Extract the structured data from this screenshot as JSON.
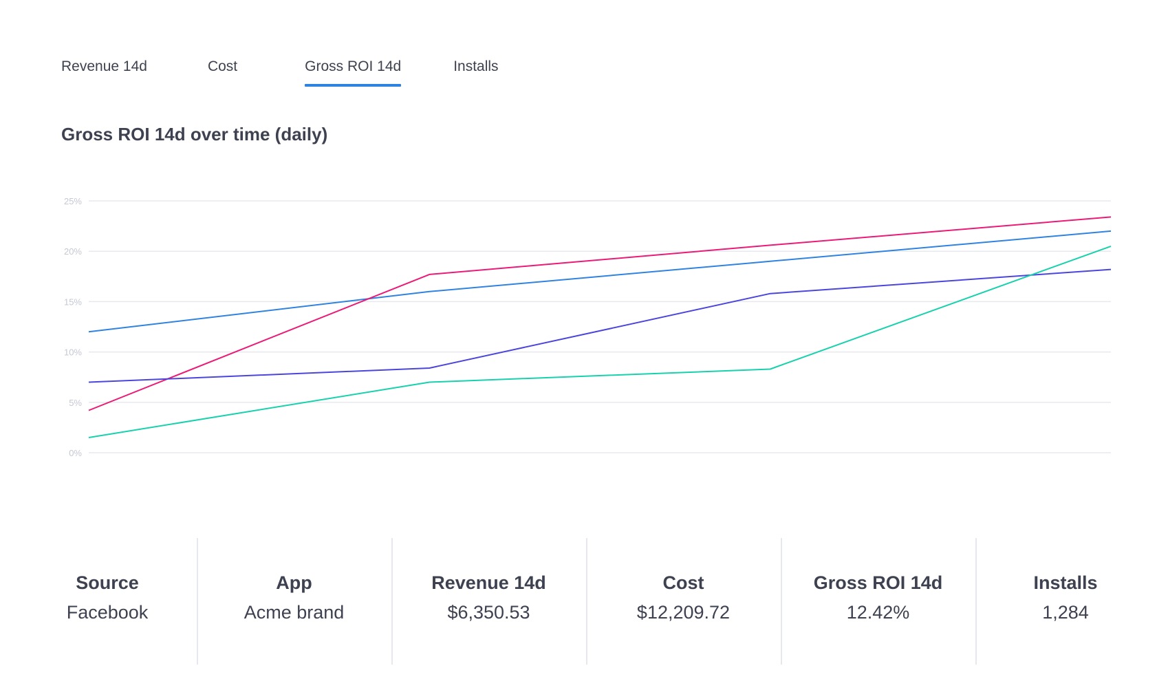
{
  "tabs": [
    {
      "label": "Revenue 14d",
      "active": false
    },
    {
      "label": "Cost",
      "active": false
    },
    {
      "label": "Gross ROI 14d",
      "active": true
    },
    {
      "label": "Installs",
      "active": false
    }
  ],
  "accent_color": "#2f82e0",
  "chart_data": {
    "type": "line",
    "title": "Gross ROI 14d over time (daily)",
    "xlabel": "",
    "ylabel": "",
    "ylim": [
      0,
      25
    ],
    "y_ticks": [
      "0%",
      "5%",
      "10%",
      "15%",
      "20%",
      "25%"
    ],
    "y_tick_values": [
      0,
      5,
      10,
      15,
      20,
      25
    ],
    "x": [
      0,
      1,
      2,
      3
    ],
    "grid": true,
    "series": [
      {
        "values": [
          12.0,
          16.0,
          19.0,
          22.0
        ],
        "color": "#2f82e0"
      },
      {
        "values": [
          4.2,
          17.7,
          20.6,
          23.4
        ],
        "color": "#ea1a76"
      },
      {
        "values": [
          7.0,
          8.4,
          15.8,
          18.2
        ],
        "color": "#4b45dc"
      },
      {
        "values": [
          1.5,
          7.0,
          8.3,
          20.5
        ],
        "color": "#17d1ac"
      }
    ]
  },
  "summary": [
    {
      "header": "Source",
      "value": "Facebook"
    },
    {
      "header": "App",
      "value": "Acme brand"
    },
    {
      "header": "Revenue 14d",
      "value": "$6,350.53"
    },
    {
      "header": "Cost",
      "value": "$12,209.72"
    },
    {
      "header": "Gross ROI 14d",
      "value": "12.42%"
    },
    {
      "header": "Installs",
      "value": "1,284"
    }
  ]
}
